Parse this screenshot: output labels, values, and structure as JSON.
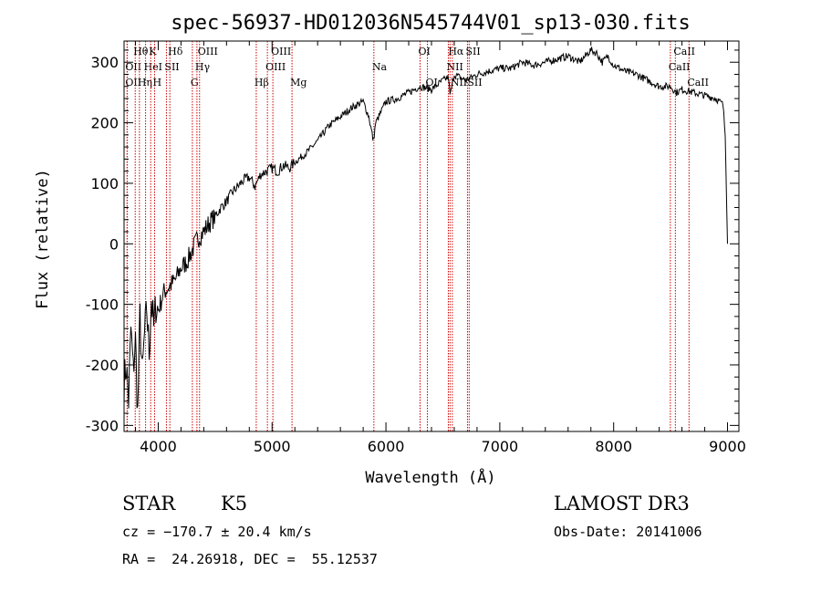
{
  "chart_data": {
    "type": "line",
    "title": "spec-56937-HD012036N545744V01_sp13-030.fits",
    "xlabel": "Wavelength (Å)",
    "ylabel": "Flux (relative)",
    "xlim": [
      3700,
      9100
    ],
    "ylim": [
      -310,
      335
    ],
    "xticks": [
      4000,
      5000,
      6000,
      7000,
      8000,
      9000
    ],
    "yticks": [
      -300,
      -200,
      -100,
      0,
      100,
      200,
      300
    ],
    "grid": false,
    "series_color": "#000000",
    "line_color": "#cc0000",
    "spectrum": {
      "x": [
        3700,
        3720,
        3740,
        3760,
        3780,
        3800,
        3820,
        3840,
        3860,
        3880,
        3900,
        3920,
        3940,
        3960,
        3980,
        4000,
        4050,
        4100,
        4150,
        4200,
        4250,
        4300,
        4350,
        4400,
        4450,
        4500,
        4550,
        4600,
        4650,
        4700,
        4750,
        4800,
        4850,
        4900,
        4950,
        5000,
        5050,
        5100,
        5150,
        5200,
        5300,
        5400,
        5500,
        5600,
        5700,
        5800,
        5850,
        5890,
        5910,
        5950,
        6000,
        6100,
        6200,
        6300,
        6400,
        6500,
        6550,
        6563,
        6600,
        6700,
        6800,
        6900,
        7000,
        7100,
        7200,
        7300,
        7400,
        7500,
        7600,
        7700,
        7800,
        7850,
        7900,
        7950,
        8000,
        8100,
        8200,
        8300,
        8400,
        8500,
        8550,
        8600,
        8700,
        8800,
        8900,
        8960,
        8980,
        9000
      ],
      "y": [
        -230,
        -200,
        -260,
        -140,
        -210,
        -160,
        -280,
        -120,
        -220,
        -150,
        -110,
        -180,
        -90,
        -140,
        -100,
        -110,
        -80,
        -70,
        -60,
        -40,
        -30,
        -10,
        10,
        20,
        35,
        45,
        60,
        70,
        85,
        95,
        105,
        110,
        95,
        115,
        120,
        125,
        120,
        130,
        125,
        135,
        150,
        170,
        195,
        210,
        225,
        235,
        210,
        170,
        200,
        215,
        235,
        240,
        250,
        260,
        255,
        270,
        275,
        245,
        280,
        270,
        280,
        285,
        290,
        290,
        300,
        295,
        300,
        305,
        310,
        300,
        320,
        315,
        300,
        310,
        295,
        285,
        280,
        270,
        260,
        260,
        250,
        255,
        250,
        245,
        240,
        230,
        180,
        0
      ]
    },
    "lines": [
      {
        "name": "OII",
        "x": 3727,
        "row": 2
      },
      {
        "name": "Hθ",
        "x": 3798,
        "row": 0
      },
      {
        "name": "OII",
        "x": 3727,
        "row": 1
      },
      {
        "name": "Hη",
        "x": 3835,
        "row": 2
      },
      {
        "name": "HeI",
        "x": 3889,
        "row": 1
      },
      {
        "name": "K",
        "x": 3934,
        "row": 0
      },
      {
        "name": "H",
        "x": 3968,
        "row": 2
      },
      {
        "name": "SII",
        "x": 4072,
        "row": 1
      },
      {
        "name": "Hδ",
        "x": 4102,
        "row": 0
      },
      {
        "name": "G",
        "x": 4300,
        "row": 2
      },
      {
        "name": "Hγ",
        "x": 4340,
        "row": 1
      },
      {
        "name": "OIII",
        "x": 4363,
        "row": 0
      },
      {
        "name": "Hβ",
        "x": 4861,
        "row": 2
      },
      {
        "name": "OIII",
        "x": 4959,
        "row": 1
      },
      {
        "name": "OIII",
        "x": 5007,
        "row": 0
      },
      {
        "name": "Mg",
        "x": 5175,
        "row": 2
      },
      {
        "name": "Na",
        "x": 5894,
        "row": 1
      },
      {
        "name": "OI",
        "x": 6300,
        "row": 0
      },
      {
        "name": "OI",
        "x": 6364,
        "row": 2
      },
      {
        "name": "NII",
        "x": 6548,
        "row": 1
      },
      {
        "name": "Hα",
        "x": 6563,
        "row": 0
      },
      {
        "name": "NII",
        "x": 6583,
        "row": 2
      },
      {
        "name": "SII",
        "x": 6716,
        "row": 0
      },
      {
        "name": "SII",
        "x": 6731,
        "row": 2
      },
      {
        "name": "CaII",
        "x": 8498,
        "row": 1
      },
      {
        "name": "CaII",
        "x": 8542,
        "row": 0
      },
      {
        "name": "CaII",
        "x": 8662,
        "row": 2
      }
    ]
  },
  "info": {
    "class": "STAR",
    "subclass": "K5",
    "survey": "LAMOST DR3",
    "cz": "cz = −170.7 ± 20.4 km/s",
    "obs_date": "Obs-Date: 20141006",
    "coords": "RA =  24.26918, DEC =  55.12537"
  }
}
